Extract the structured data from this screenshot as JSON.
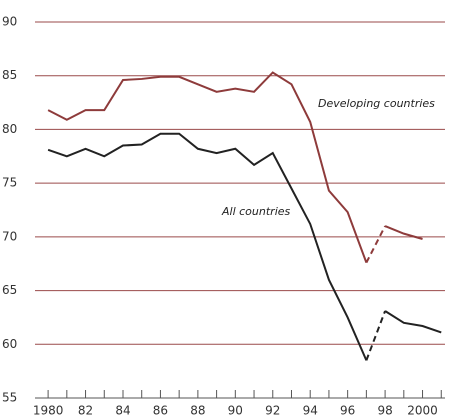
{
  "chart_data": {
    "type": "line",
    "x": [
      1980,
      1981,
      1982,
      1983,
      1984,
      1985,
      1986,
      1987,
      1988,
      1989,
      1990,
      1991,
      1992,
      1993,
      1994,
      1995,
      1996,
      1997,
      1998,
      1999,
      2000,
      2001
    ],
    "series": [
      {
        "name": "Developing countries",
        "color": "#8e3b3b",
        "dashed_x": [
          1997,
          1998
        ],
        "values": [
          81.8,
          80.9,
          81.8,
          81.8,
          84.6,
          84.7,
          84.9,
          84.9,
          84.2,
          83.5,
          83.8,
          83.5,
          85.3,
          84.2,
          80.7,
          74.3,
          72.3,
          67.6,
          71.0,
          70.3,
          69.8,
          null
        ]
      },
      {
        "name": "All countries",
        "color": "#222222",
        "dashed_x": [
          1997,
          1998
        ],
        "values": [
          78.1,
          77.5,
          78.2,
          77.5,
          78.5,
          78.6,
          79.6,
          79.6,
          78.2,
          77.8,
          78.2,
          76.7,
          77.8,
          74.5,
          71.2,
          66.0,
          62.5,
          58.5,
          63.1,
          62.0,
          61.7,
          61.1
        ]
      }
    ],
    "xlim": [
      1979.3,
      2001.2
    ],
    "xticks": [
      1980,
      {
        "value": 1982,
        "label": "82"
      },
      {
        "value": 1984,
        "label": "84"
      },
      {
        "value": 1986,
        "label": "86"
      },
      {
        "value": 1988,
        "label": "88"
      },
      {
        "value": 1990,
        "label": "90"
      },
      {
        "value": 1992,
        "label": "92"
      },
      {
        "value": 1994,
        "label": "94"
      },
      {
        "value": 1996,
        "label": "96"
      },
      {
        "value": 1998,
        "label": "98"
      },
      2000
    ],
    "ylim": [
      55,
      90
    ],
    "yticks": [
      55,
      60,
      65,
      70,
      75,
      80,
      85,
      90
    ],
    "grid": true,
    "grid_color": "#9a4a4a"
  }
}
